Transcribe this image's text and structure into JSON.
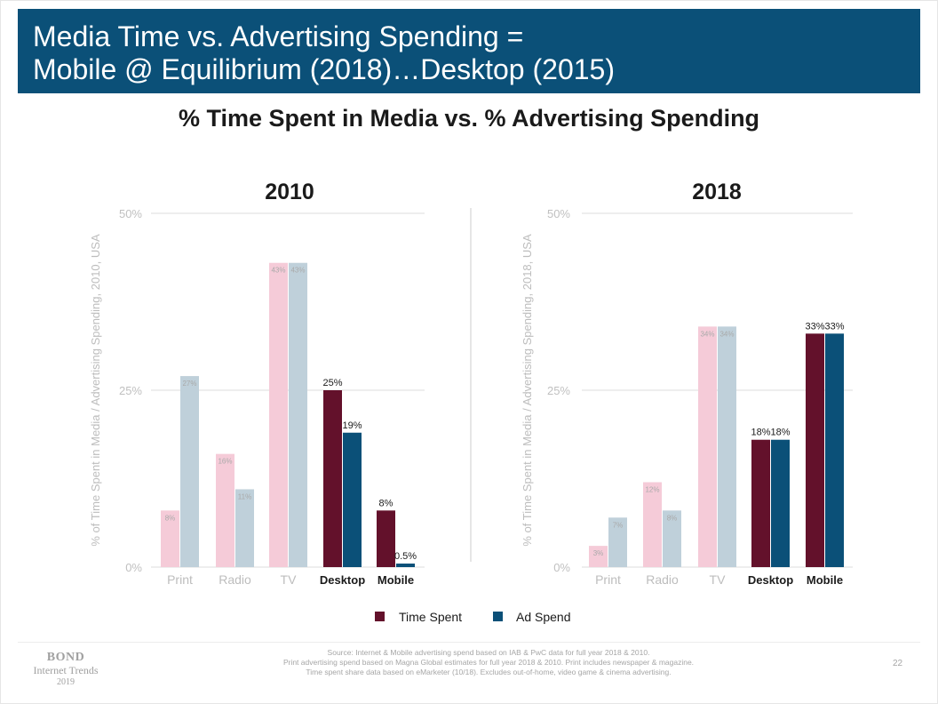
{
  "header": {
    "title_line1": "Media Time vs. Advertising Spending =",
    "title_line2": "Mobile @ Equilibrium (2018)…Desktop (2015)"
  },
  "subtitle": "% Time Spent in Media vs. % Advertising Spending",
  "colors": {
    "header_bg": "#0b5078",
    "time_spent": "#63112b",
    "ad_spend": "#0b5078",
    "time_spent_faded": "#f5cbd8",
    "ad_spend_faded": "#bfd0da"
  },
  "chart_data": [
    {
      "type": "bar",
      "title": "2010",
      "ylabel": "% of Time Spent in Media / Advertising Spending, 2010, USA",
      "ylim": [
        0,
        50
      ],
      "yticks": [
        "0%",
        "25%",
        "50%"
      ],
      "categories": [
        "Print",
        "Radio",
        "TV",
        "Desktop",
        "Mobile"
      ],
      "highlighted": [
        false,
        false,
        false,
        true,
        true
      ],
      "series": [
        {
          "name": "Time Spent",
          "values": [
            8,
            16,
            43,
            25,
            8
          ],
          "labels": [
            "8%",
            "16%",
            "43%",
            "25%",
            "8%"
          ]
        },
        {
          "name": "Ad Spend",
          "values": [
            27,
            11,
            43,
            19,
            0.5
          ],
          "labels": [
            "27%",
            "11%",
            "43%",
            "19%",
            "0.5%"
          ]
        }
      ]
    },
    {
      "type": "bar",
      "title": "2018",
      "ylabel": "% of Time Spent in Media / Advertising Spending, 2018, USA",
      "ylim": [
        0,
        50
      ],
      "yticks": [
        "0%",
        "25%",
        "50%"
      ],
      "categories": [
        "Print",
        "Radio",
        "TV",
        "Desktop",
        "Mobile"
      ],
      "highlighted": [
        false,
        false,
        false,
        true,
        true
      ],
      "series": [
        {
          "name": "Time Spent",
          "values": [
            3,
            12,
            34,
            18,
            33
          ],
          "labels": [
            "3%",
            "12%",
            "34%",
            "18%",
            "33%"
          ]
        },
        {
          "name": "Ad Spend",
          "values": [
            7,
            8,
            34,
            18,
            33
          ],
          "labels": [
            "7%",
            "8%",
            "34%",
            "18%",
            "33%"
          ]
        }
      ]
    }
  ],
  "legend": {
    "time_spent": "Time Spent",
    "ad_spend": "Ad Spend"
  },
  "footer": {
    "brand_line1": "BOND",
    "brand_line2": "Internet Trends",
    "brand_line3": "2019",
    "source_line1": "Source: Internet & Mobile advertising spend based on IAB & PwC data for full year 2018 & 2010.",
    "source_line2": "Print advertising spend based on Magna Global estimates for full year 2018 & 2010. Print includes newspaper & magazine.",
    "source_line3": "Time spent share data based on eMarketer (10/18). Excludes out-of-home, video game & cinema advertising.",
    "page_number": "22"
  }
}
